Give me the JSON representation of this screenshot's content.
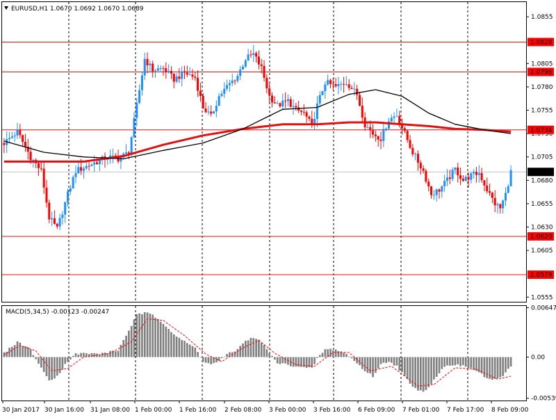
{
  "window": {
    "symbol_header": "EURUSD,H1  1.0670 1.0692 1.0670 1.0689",
    "indicator_header": "MACD(5,34,5) -0.00123 -0.00247"
  },
  "colors": {
    "background": "#ffffff",
    "frame": "#000000",
    "bull": "#1e90ff",
    "bear": "#ff0000",
    "ma_fast": "#000000",
    "ma_slow": "#e01010",
    "level_line": "#e01010",
    "level_tag_bg": "#ff0000",
    "level_tag_text": "#ffffff",
    "grid_vertical": "#000000",
    "price_line": "#c0c0c0",
    "macd_hist": "#808080",
    "macd_signal": "#ff0000"
  },
  "chart_data": {
    "type": "candlestick",
    "title": "EURUSD,H1",
    "ohlc_last": {
      "open": 1.067,
      "high": 1.0692,
      "low": 1.067,
      "close": 1.0689
    },
    "price_axis": {
      "ticks": [
        "1.0855",
        "1.0805",
        "1.0780",
        "1.0755",
        "1.0730",
        "1.0705",
        "1.0680",
        "1.0655",
        "1.0630",
        "1.0605",
        "1.0555"
      ],
      "ylim": [
        1.055,
        1.087
      ]
    },
    "time_axis": {
      "labels": [
        "30 Jan 2017",
        "30 Jan 16:00",
        "31 Jan 08:00",
        "1 Feb 00:00",
        "1 Feb 16:00",
        "2 Feb 08:00",
        "3 Feb 00:00",
        "3 Feb 16:00",
        "6 Feb 09:00",
        "7 Feb 01:00",
        "7 Feb 17:00",
        "8 Feb 09:00"
      ],
      "grid_vertical": true,
      "grid_style": "dashed"
    },
    "levels": [
      {
        "price": 1.0828,
        "label": "1.0828"
      },
      {
        "price": 1.0796,
        "label": "1.0796"
      },
      {
        "price": 1.0734,
        "label": "1.0734"
      },
      {
        "price": 1.062,
        "label": "1.0620"
      },
      {
        "price": 1.0579,
        "label": "1.0579"
      }
    ],
    "current_price": {
      "price": 1.0689,
      "label": "1.0689"
    },
    "close_path": [
      [
        0,
        1.072
      ],
      [
        5,
        1.0732
      ],
      [
        10,
        1.0705
      ],
      [
        14,
        1.069
      ],
      [
        17,
        1.064
      ],
      [
        20,
        1.0628
      ],
      [
        24,
        1.0665
      ],
      [
        27,
        1.069
      ],
      [
        31,
        1.0695
      ],
      [
        35,
        1.07
      ],
      [
        39,
        1.0705
      ],
      [
        43,
        1.0703
      ],
      [
        47,
        1.071
      ],
      [
        50,
        1.076
      ],
      [
        53,
        1.081
      ],
      [
        56,
        1.0798
      ],
      [
        60,
        1.08
      ],
      [
        64,
        1.0788
      ],
      [
        68,
        1.0795
      ],
      [
        72,
        1.079
      ],
      [
        75,
        1.0758
      ],
      [
        78,
        1.0748
      ],
      [
        81,
        1.077
      ],
      [
        84,
        1.078
      ],
      [
        88,
        1.0792
      ],
      [
        91,
        1.081
      ],
      [
        94,
        1.0815
      ],
      [
        97,
        1.08
      ],
      [
        100,
        1.077
      ],
      [
        103,
        1.076
      ],
      [
        107,
        1.0765
      ],
      [
        110,
        1.0755
      ],
      [
        113,
        1.0752
      ],
      [
        116,
        1.0738
      ],
      [
        118,
        1.076
      ],
      [
        121,
        1.0785
      ],
      [
        125,
        1.078
      ],
      [
        129,
        1.0785
      ],
      [
        133,
        1.0772
      ],
      [
        136,
        1.074
      ],
      [
        139,
        1.073
      ],
      [
        142,
        1.0725
      ],
      [
        145,
        1.0745
      ],
      [
        148,
        1.075
      ],
      [
        151,
        1.073
      ],
      [
        154,
        1.071
      ],
      [
        158,
        1.069
      ],
      [
        161,
        1.0665
      ],
      [
        164,
        1.067
      ],
      [
        167,
        1.068
      ],
      [
        170,
        1.0692
      ],
      [
        173,
        1.068
      ],
      [
        176,
        1.0685
      ],
      [
        179,
        1.0688
      ],
      [
        182,
        1.067
      ],
      [
        185,
        1.0655
      ],
      [
        187,
        1.065
      ],
      [
        189,
        1.0665
      ],
      [
        191,
        1.0689
      ]
    ],
    "ma_fast_path": [
      [
        0,
        1.0722
      ],
      [
        15,
        1.071
      ],
      [
        30,
        1.0705
      ],
      [
        45,
        1.0703
      ],
      [
        60,
        1.0712
      ],
      [
        75,
        1.072
      ],
      [
        90,
        1.0735
      ],
      [
        105,
        1.0756
      ],
      [
        118,
        1.0758
      ],
      [
        130,
        1.0772
      ],
      [
        140,
        1.0777
      ],
      [
        150,
        1.077
      ],
      [
        160,
        1.0752
      ],
      [
        170,
        1.074
      ],
      [
        181,
        1.0734
      ],
      [
        191,
        1.073
      ]
    ],
    "ma_slow_path": [
      [
        0,
        1.07
      ],
      [
        15,
        1.07
      ],
      [
        30,
        1.07
      ],
      [
        45,
        1.0706
      ],
      [
        60,
        1.0718
      ],
      [
        75,
        1.0728
      ],
      [
        90,
        1.0735
      ],
      [
        105,
        1.074
      ],
      [
        118,
        1.074
      ],
      [
        130,
        1.0742
      ],
      [
        140,
        1.0742
      ],
      [
        150,
        1.074
      ],
      [
        160,
        1.0738
      ],
      [
        170,
        1.0735
      ],
      [
        181,
        1.0734
      ],
      [
        191,
        1.0732
      ]
    ],
    "macd": {
      "name": "MACD(5,34,5)",
      "values_header": "-0.00123 -0.00247",
      "axis_ticks": [
        "0.00647",
        "0.00",
        "-0.00539"
      ],
      "ylim": [
        -0.0056,
        0.0066
      ],
      "histogram_path": [
        [
          0,
          0.0005
        ],
        [
          5,
          0.002
        ],
        [
          10,
          0.001
        ],
        [
          14,
          -0.0015
        ],
        [
          17,
          -0.003
        ],
        [
          20,
          -0.0025
        ],
        [
          24,
          -0.0005
        ],
        [
          27,
          0.0004
        ],
        [
          31,
          0.0005
        ],
        [
          35,
          0.0004
        ],
        [
          39,
          0.0006
        ],
        [
          43,
          0.0009
        ],
        [
          47,
          0.0035
        ],
        [
          50,
          0.0055
        ],
        [
          53,
          0.0058
        ],
        [
          56,
          0.0055
        ],
        [
          60,
          0.0045
        ],
        [
          64,
          0.003
        ],
        [
          68,
          0.002
        ],
        [
          72,
          0.0012
        ],
        [
          75,
          -0.0005
        ],
        [
          78,
          -0.001
        ],
        [
          81,
          -0.0005
        ],
        [
          84,
          0.0003
        ],
        [
          88,
          0.001
        ],
        [
          91,
          0.0022
        ],
        [
          94,
          0.0025
        ],
        [
          97,
          0.002
        ],
        [
          100,
          0.0005
        ],
        [
          103,
          -0.0008
        ],
        [
          107,
          -0.001
        ],
        [
          110,
          -0.0012
        ],
        [
          113,
          -0.0014
        ],
        [
          116,
          -0.0015
        ],
        [
          118,
          -0.0002
        ],
        [
          121,
          0.001
        ],
        [
          125,
          0.001
        ],
        [
          129,
          0.0004
        ],
        [
          133,
          -0.0008
        ],
        [
          136,
          -0.0018
        ],
        [
          139,
          -0.0025
        ],
        [
          142,
          -0.001
        ],
        [
          145,
          -0.0005
        ],
        [
          148,
          -0.0012
        ],
        [
          151,
          -0.0025
        ],
        [
          154,
          -0.004
        ],
        [
          158,
          -0.0045
        ],
        [
          161,
          -0.0035
        ],
        [
          164,
          -0.002
        ],
        [
          167,
          -0.001
        ],
        [
          170,
          -0.001
        ],
        [
          173,
          -0.0012
        ],
        [
          176,
          -0.0015
        ],
        [
          179,
          -0.002
        ],
        [
          182,
          -0.0028
        ],
        [
          185,
          -0.003
        ],
        [
          187,
          -0.0028
        ],
        [
          189,
          -0.002
        ],
        [
          191,
          -0.0012
        ]
      ],
      "signal_path": [
        [
          0,
          0.0003
        ],
        [
          6,
          0.0015
        ],
        [
          12,
          0.0008
        ],
        [
          18,
          -0.0018
        ],
        [
          24,
          -0.0015
        ],
        [
          30,
          0.0
        ],
        [
          40,
          0.0005
        ],
        [
          48,
          0.002
        ],
        [
          54,
          0.005
        ],
        [
          60,
          0.0048
        ],
        [
          68,
          0.0028
        ],
        [
          76,
          0.0004
        ],
        [
          82,
          -0.0006
        ],
        [
          90,
          0.0012
        ],
        [
          96,
          0.0022
        ],
        [
          102,
          0.0005
        ],
        [
          110,
          -0.001
        ],
        [
          117,
          -0.0012
        ],
        [
          124,
          0.0006
        ],
        [
          130,
          0.0006
        ],
        [
          138,
          -0.0018
        ],
        [
          146,
          -0.0012
        ],
        [
          156,
          -0.0038
        ],
        [
          162,
          -0.0036
        ],
        [
          170,
          -0.0014
        ],
        [
          178,
          -0.0016
        ],
        [
          186,
          -0.0029
        ],
        [
          191,
          -0.0025
        ]
      ]
    }
  }
}
